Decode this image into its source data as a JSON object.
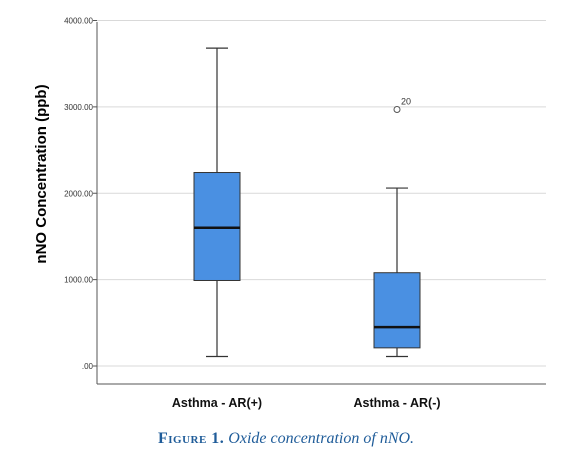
{
  "chart_data": {
    "type": "boxplot",
    "ylabel": "nNO Concentration (ppb)",
    "ylim": [
      0,
      4000
    ],
    "yticks": [
      0,
      1000,
      2000,
      3000,
      4000
    ],
    "ytick_labels": [
      ".00",
      "1000.00",
      "2000.00",
      "3000.00",
      "4000.00"
    ],
    "grid": true,
    "categories": [
      "Asthma - AR(+)",
      "Asthma - AR(-)"
    ],
    "boxes": [
      {
        "min": 110,
        "q1": 990,
        "median": 1600,
        "q3": 2240,
        "max": 3680,
        "outliers": []
      },
      {
        "min": 110,
        "q1": 210,
        "median": 450,
        "q3": 1080,
        "max": 2060,
        "outliers": [
          {
            "value": 2970,
            "label": "20"
          }
        ]
      }
    ],
    "box_color": "#4a90e2"
  },
  "caption": {
    "figure": "Figure 1.",
    "text": "Oxide concentration of nNO."
  }
}
